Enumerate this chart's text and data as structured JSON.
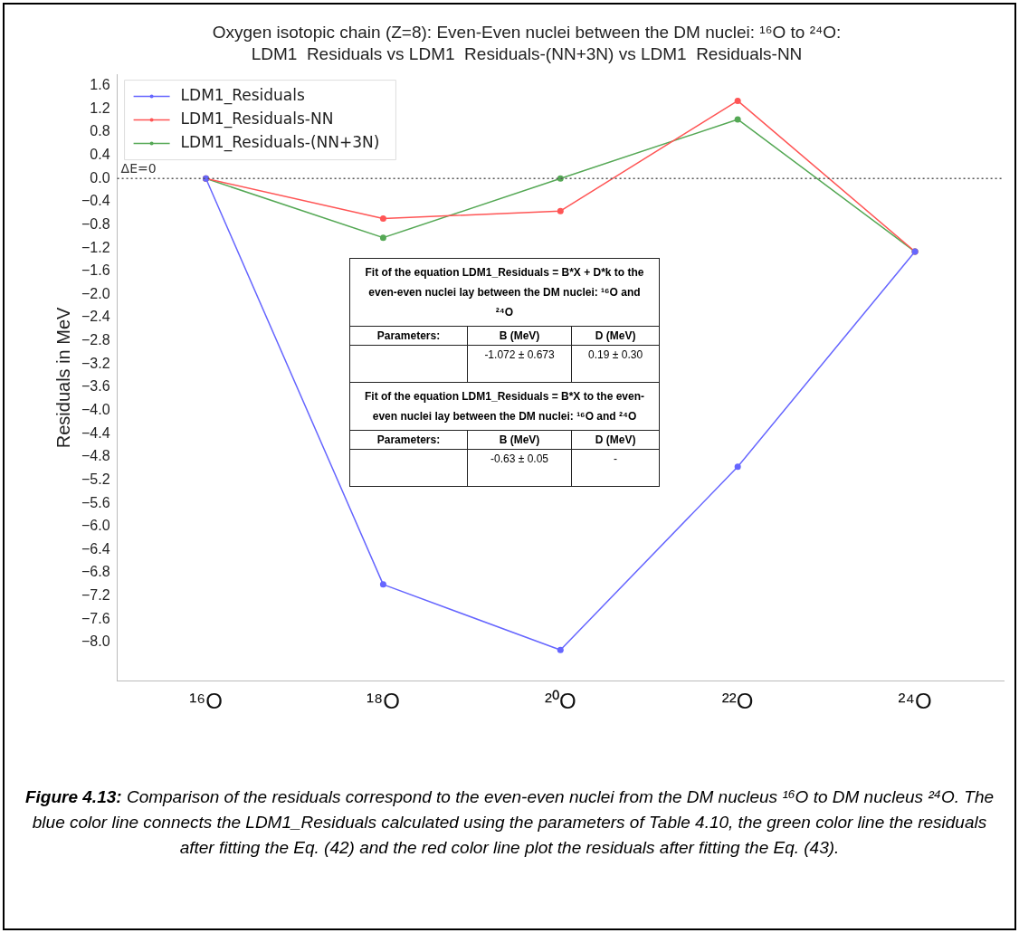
{
  "chart_data": {
    "type": "line",
    "title": "Oxygen isotopic chain (Z=8): Even-Even nuclei between the DM nuclei: ¹⁶O to ²⁴O:",
    "subtitle": "LDM1  Residuals vs LDM1  Residuals-(NN+3N) vs LDM1  Residuals-NN",
    "ylabel": "Residuals in MeV",
    "categories": [
      "¹⁶O",
      "¹⁸O",
      "²⁰O",
      "²²O",
      "²⁴O"
    ],
    "series": [
      {
        "name": "LDM1_Residuals",
        "color": "#6666ff",
        "values": [
          0,
          -7.0,
          -8.13,
          -4.97,
          -1.26
        ]
      },
      {
        "name": "LDM1_Residuals-NN",
        "color": "#ff5555",
        "values": [
          0,
          -0.69,
          -0.56,
          1.34,
          -1.26
        ]
      },
      {
        "name": "LDM1_Residuals-(NN+3N)",
        "color": "#55a855",
        "values": [
          0,
          -1.02,
          0,
          1.02,
          -1.26
        ]
      }
    ],
    "ylim": [
      -8.66,
      1.79
    ],
    "yticks": [
      {
        "value": 1.6,
        "label": "1.6"
      },
      {
        "value": 1.2,
        "label": "1.2"
      },
      {
        "value": 0.8,
        "label": "0.8"
      },
      {
        "value": 0.4,
        "label": "0.4"
      },
      {
        "value": 0,
        "label": "0.0"
      },
      {
        "value": -0.4,
        "label": "−0.4"
      },
      {
        "value": -0.8,
        "label": "−0.8"
      },
      {
        "value": -1.2,
        "label": "−1.2"
      },
      {
        "value": -1.6,
        "label": "−1.6"
      },
      {
        "value": -2.0,
        "label": "−2.0"
      },
      {
        "value": -2.4,
        "label": "−2.4"
      },
      {
        "value": -2.8,
        "label": "−2.8"
      },
      {
        "value": -3.2,
        "label": "−3.2"
      },
      {
        "value": -3.6,
        "label": "−3.6"
      },
      {
        "value": -4.0,
        "label": "−4.0"
      },
      {
        "value": -4.4,
        "label": "−4.4"
      },
      {
        "value": -4.8,
        "label": "−4.8"
      },
      {
        "value": -5.2,
        "label": "−5.2"
      },
      {
        "value": -5.6,
        "label": "−5.6"
      },
      {
        "value": -6.0,
        "label": "−6.0"
      },
      {
        "value": -6.4,
        "label": "−6.4"
      },
      {
        "value": -6.8,
        "label": "−6.8"
      },
      {
        "value": -7.2,
        "label": "−7.2"
      },
      {
        "value": -7.6,
        "label": "−7.6"
      },
      {
        "value": -8.0,
        "label": "−8.0"
      }
    ],
    "ref_lines": [
      {
        "axis": "y",
        "value": 0,
        "label": "ΔE=0",
        "color": "#555555",
        "line_style": "dotted"
      }
    ],
    "grid": false,
    "legend": "top left",
    "marker": "circle",
    "line_style": "solid",
    "annotations": [
      "Fit  of the equation LDM1_Residuals = B*X + D*k to the even-even nuclei lay between the DM nuclei: ¹⁶O and ²⁴O",
      "Parameters:",
      "B (MeV)",
      "D (MeV)",
      "-1.072 ± 0.673",
      "0.19 ± 0.30",
      "Fit  of the equation LDM1_Residuals = B*X to the even-even nuclei lay between the DM nuclei: ¹⁶O and ²⁴O",
      "Parameters:",
      "B (MeV)",
      "D (MeV)",
      "-0.63 ± 0.05",
      "-",
      "Figure 4.13: Comparison of the residuals correspond to the even-even nuclei from the DM nucleus ¹⁶O to DM nucleus ²⁴O. The blue color line connects the LDM1_Residuals calculated using the parameters of Table 4.10, the green color line the residuals after fitting the Eq. (42) and the red color line plot the residuals after fitting the Eq. (43)."
    ]
  }
}
